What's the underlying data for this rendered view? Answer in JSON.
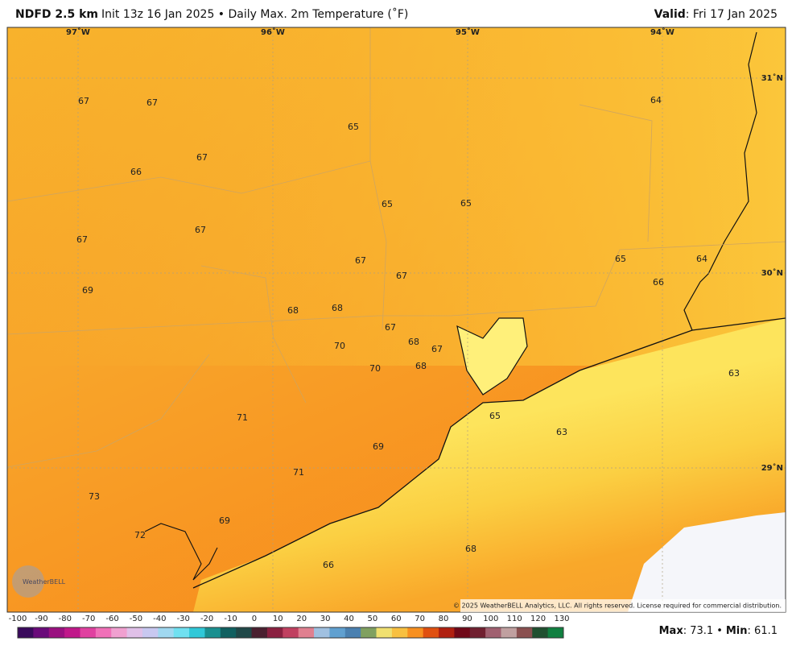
{
  "header": {
    "title_bold": "NDFD 2.5 km",
    "title_rest": "Init 13z 16 Jan 2025 • Daily Max. 2m Temperature (˚F)",
    "valid_label": "Valid",
    "valid_value": ": Fri 17 Jan 2025"
  },
  "map": {
    "lon_labels": [
      "97˚W",
      "96˚W",
      "95˚W",
      "94˚W"
    ],
    "lat_labels": [
      "31˚N",
      "30˚N",
      "29˚N"
    ],
    "station_values": [
      67,
      67,
      65,
      64,
      67,
      66,
      65,
      65,
      67,
      67,
      67,
      67,
      65,
      64,
      66,
      69,
      68,
      68,
      67,
      68,
      67,
      70,
      70,
      68,
      63,
      71,
      65,
      63,
      69,
      71,
      73,
      69,
      72,
      68,
      66
    ],
    "logo_text": "WeatherBELL",
    "copyright": "© 2025 WeatherBELL Analytics, LLC. All rights reserved. License required for commercial distribution."
  },
  "colorbar": {
    "labels": [
      "-100",
      "-90",
      "-80",
      "-70",
      "-60",
      "-50",
      "-40",
      "-30",
      "-20",
      "-10",
      "0",
      "10",
      "20",
      "30",
      "40",
      "50",
      "60",
      "70",
      "80",
      "90",
      "100",
      "110",
      "120",
      "130"
    ]
  },
  "footer": {
    "max_label": "Max",
    "max_value": ": 73.1",
    "bullet": "•",
    "min_label": "Min",
    "min_value": ": 61.1"
  }
}
